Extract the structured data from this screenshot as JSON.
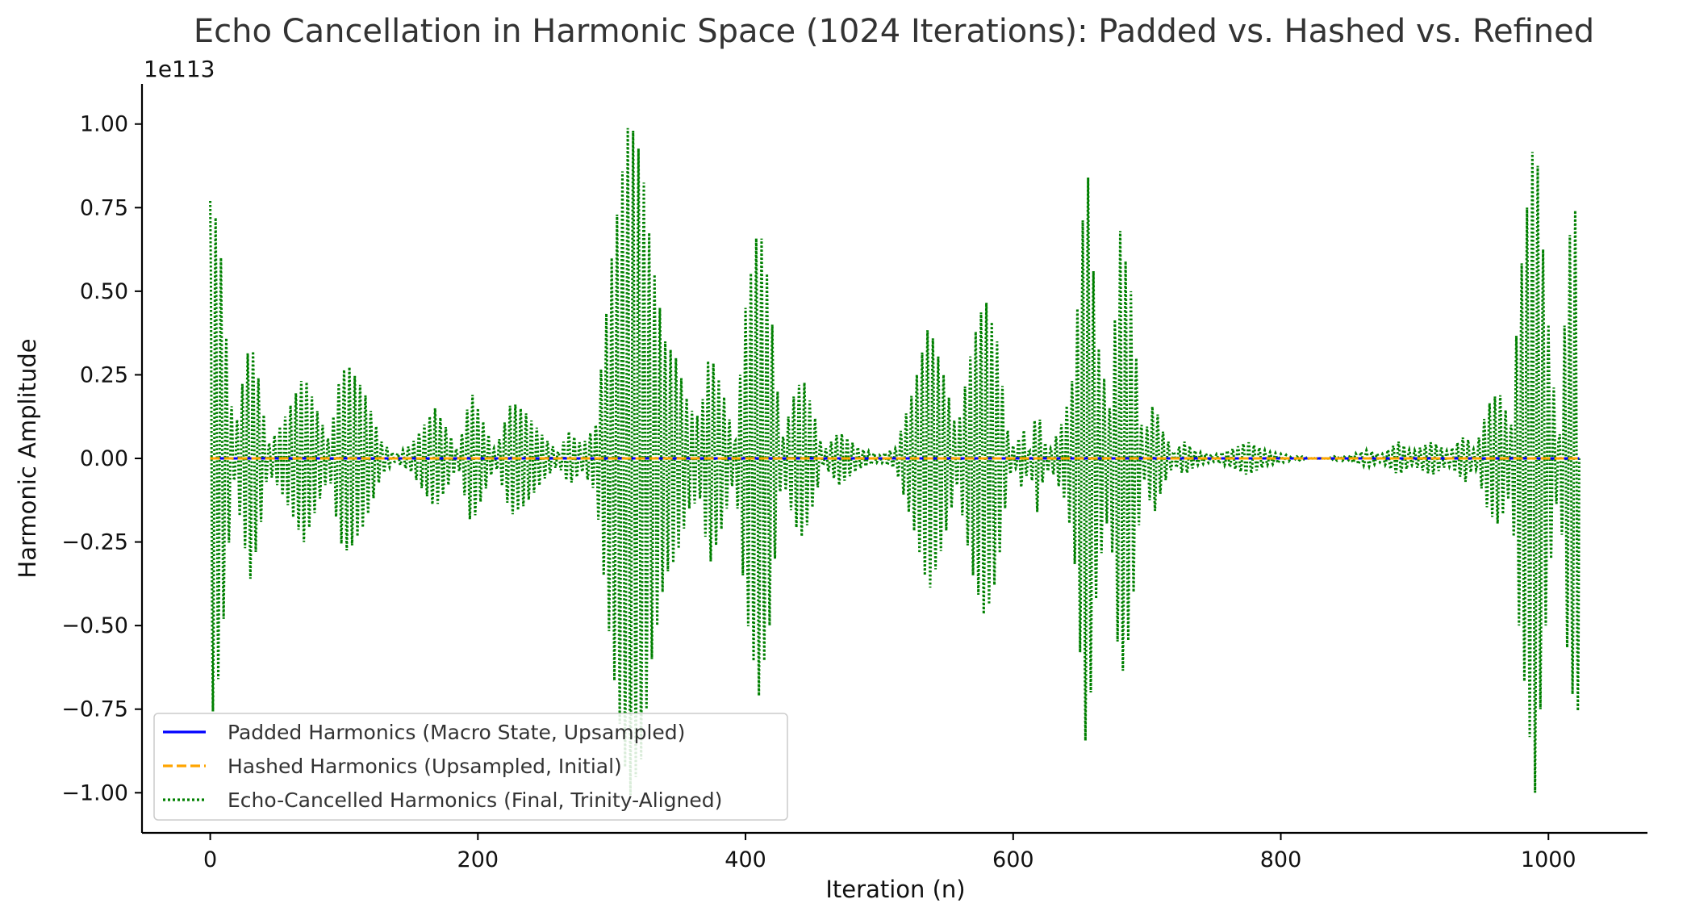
{
  "chart_data": {
    "type": "line",
    "title": "Echo Cancellation in Harmonic Space (1024 Iterations): Padded vs. Hashed vs. Refined",
    "xlabel": "Iteration (n)",
    "ylabel": "Harmonic Amplitude",
    "y_offset_label": "1e113",
    "xlim": [
      -51,
      1074
    ],
    "ylim": [
      -1.12,
      1.12
    ],
    "xticks": [
      0,
      200,
      400,
      600,
      800,
      1000
    ],
    "xtick_labels": [
      "0",
      "200",
      "400",
      "600",
      "800",
      "1000"
    ],
    "yticks": [
      1.0,
      0.75,
      0.5,
      0.25,
      0.0,
      -0.25,
      -0.5,
      -0.75,
      -1.0
    ],
    "ytick_labels": [
      "1.00",
      "0.75",
      "0.50",
      "0.25",
      "0.00",
      "−0.25",
      "−0.50",
      "−0.75",
      "−1.00"
    ],
    "grid": false,
    "legend_position": "lower-left",
    "series": [
      {
        "name": "Padded Harmonics (Macro State, Upsampled)",
        "color": "#0000ff",
        "style": "solid",
        "x_range": [
          0,
          1023
        ],
        "value": 0.0
      },
      {
        "name": "Hashed Harmonics (Upsampled, Initial)",
        "color": "#ffa500",
        "style": "dashed",
        "x_range": [
          0,
          1023
        ],
        "value": 0.0
      },
      {
        "name": "Echo-Cancelled Harmonics (Final, Trinity-Aligned)",
        "color": "#008000",
        "style": "dotted",
        "x_range": [
          0,
          1023
        ],
        "oscillation_period": 4,
        "envelope": [
          [
            0,
            0.77
          ],
          [
            3,
            0.75
          ],
          [
            8,
            0.6
          ],
          [
            13,
            0.3
          ],
          [
            18,
            0.06
          ],
          [
            23,
            0.2
          ],
          [
            30,
            0.36
          ],
          [
            37,
            0.22
          ],
          [
            43,
            0.04
          ],
          [
            50,
            0.08
          ],
          [
            58,
            0.14
          ],
          [
            70,
            0.25
          ],
          [
            82,
            0.12
          ],
          [
            89,
            0.05
          ],
          [
            97,
            0.25
          ],
          [
            103,
            0.28
          ],
          [
            115,
            0.2
          ],
          [
            128,
            0.05
          ],
          [
            138,
            0.01
          ],
          [
            150,
            0.04
          ],
          [
            168,
            0.15
          ],
          [
            178,
            0.08
          ],
          [
            185,
            0.02
          ],
          [
            195,
            0.2
          ],
          [
            205,
            0.1
          ],
          [
            213,
            0.02
          ],
          [
            225,
            0.17
          ],
          [
            235,
            0.14
          ],
          [
            250,
            0.06
          ],
          [
            260,
            0.02
          ],
          [
            268,
            0.08
          ],
          [
            278,
            0.04
          ],
          [
            288,
            0.1
          ],
          [
            300,
            0.6
          ],
          [
            313,
            1.02
          ],
          [
            322,
            0.9
          ],
          [
            330,
            0.6
          ],
          [
            340,
            0.35
          ],
          [
            348,
            0.3
          ],
          [
            358,
            0.15
          ],
          [
            366,
            0.12
          ],
          [
            373,
            0.32
          ],
          [
            383,
            0.2
          ],
          [
            392,
            0.05
          ],
          [
            400,
            0.45
          ],
          [
            410,
            0.71
          ],
          [
            418,
            0.5
          ],
          [
            427,
            0.05
          ],
          [
            437,
            0.2
          ],
          [
            443,
            0.24
          ],
          [
            452,
            0.12
          ],
          [
            458,
            0.02
          ],
          [
            470,
            0.08
          ],
          [
            485,
            0.03
          ],
          [
            500,
            0.01
          ],
          [
            512,
            0.03
          ],
          [
            525,
            0.2
          ],
          [
            537,
            0.4
          ],
          [
            548,
            0.25
          ],
          [
            558,
            0.08
          ],
          [
            570,
            0.35
          ],
          [
            579,
            0.48
          ],
          [
            588,
            0.35
          ],
          [
            597,
            0.05
          ],
          [
            602,
            0.03
          ],
          [
            607,
            0.1
          ],
          [
            612,
            0.02
          ],
          [
            618,
            0.16
          ],
          [
            623,
            0.05
          ],
          [
            628,
            0.03
          ],
          [
            638,
            0.12
          ],
          [
            645,
            0.25
          ],
          [
            655,
            0.91
          ],
          [
            663,
            0.35
          ],
          [
            672,
            0.15
          ],
          [
            680,
            0.68
          ],
          [
            688,
            0.5
          ],
          [
            697,
            0.05
          ],
          [
            705,
            0.17
          ],
          [
            712,
            0.08
          ],
          [
            720,
            0.02
          ],
          [
            728,
            0.05
          ],
          [
            737,
            0.02
          ],
          [
            750,
            0.01
          ],
          [
            765,
            0.03
          ],
          [
            775,
            0.05
          ],
          [
            790,
            0.02
          ],
          [
            810,
            0.006
          ],
          [
            830,
            0.004
          ],
          [
            850,
            0.008
          ],
          [
            865,
            0.025
          ],
          [
            875,
            0.01
          ],
          [
            888,
            0.05
          ],
          [
            898,
            0.02
          ],
          [
            913,
            0.05
          ],
          [
            925,
            0.02
          ],
          [
            938,
            0.07
          ],
          [
            945,
            0.02
          ],
          [
            955,
            0.16
          ],
          [
            963,
            0.2
          ],
          [
            972,
            0.1
          ],
          [
            978,
            0.5
          ],
          [
            990,
            1.0
          ],
          [
            998,
            0.5
          ],
          [
            1003,
            0.25
          ],
          [
            1008,
            0.06
          ],
          [
            1015,
            0.65
          ],
          [
            1021,
            0.76
          ],
          [
            1023,
            0.75
          ]
        ]
      }
    ]
  }
}
